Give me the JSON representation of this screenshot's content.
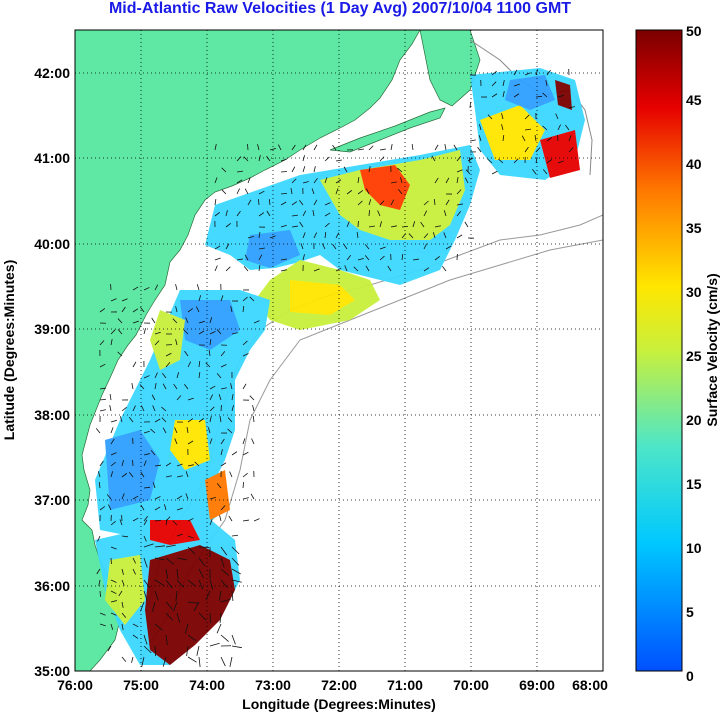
{
  "title": "Mid-Atlantic Raw Velocities (1 Day Avg) 2007/10/04 1100 GMT",
  "xlabel": "Longitude (Degrees:Minutes)",
  "ylabel": "Latitude (Degrees:Minutes)",
  "colorbar_label": "Surface Velocity (cm/s)",
  "x_ticks": [
    "76:00",
    "75:00",
    "74:00",
    "73:00",
    "72:00",
    "71:00",
    "70:00",
    "69:00",
    "68:00"
  ],
  "y_ticks": [
    "35:00",
    "36:00",
    "37:00",
    "38:00",
    "39:00",
    "40:00",
    "41:00",
    "42:00"
  ],
  "colorbar_ticks": [
    "0",
    "5",
    "10",
    "15",
    "20",
    "25",
    "30",
    "35",
    "40",
    "45",
    "50"
  ],
  "colors": {
    "land": "#5fe8a4",
    "title": "#1a1ae6",
    "grid": "#000000"
  },
  "map_data": {
    "lon_range": [
      -76.0,
      -68.0
    ],
    "lat_range": [
      35.0,
      42.5
    ],
    "velocity_range_cm_s": [
      0,
      50
    ],
    "colormap": "jet"
  }
}
